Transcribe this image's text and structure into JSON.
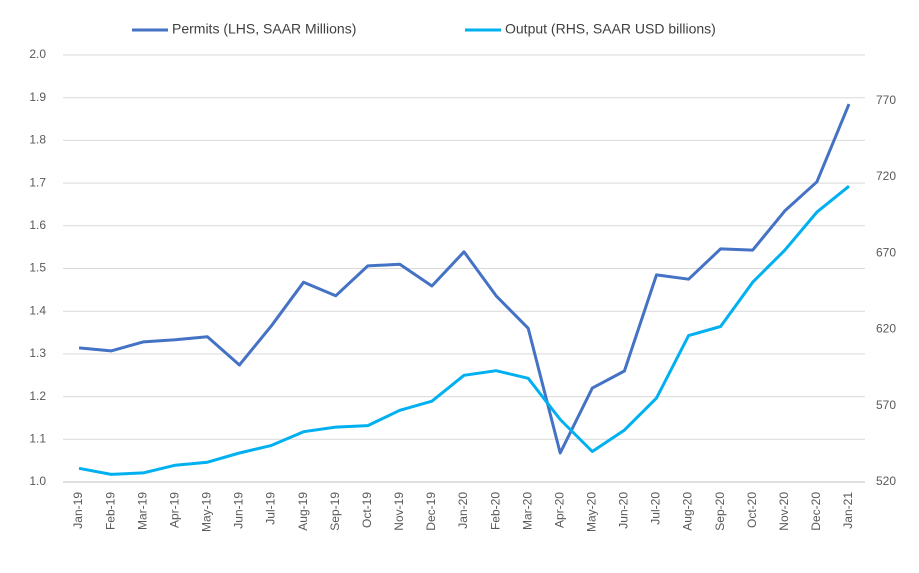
{
  "chart_data": {
    "type": "line",
    "categories": [
      "Jan-19",
      "Feb-19",
      "Mar-19",
      "Apr-19",
      "May-19",
      "Jun-19",
      "Jul-19",
      "Aug-19",
      "Sep-19",
      "Oct-19",
      "Nov-19",
      "Dec-19",
      "Jan-20",
      "Feb-20",
      "Mar-20",
      "Apr-20",
      "May-20",
      "Jun-20",
      "Jul-20",
      "Aug-20",
      "Sep-20",
      "Oct-20",
      "Nov-20",
      "Dec-20",
      "Jan-21"
    ],
    "series": [
      {
        "name": "Permits (LHS, SAAR Millions)",
        "color": "#4472c4",
        "axis": "y",
        "values": [
          1.314,
          1.307,
          1.328,
          1.333,
          1.34,
          1.274,
          1.366,
          1.468,
          1.436,
          1.506,
          1.51,
          1.459,
          1.539,
          1.436,
          1.36,
          1.068,
          1.22,
          1.26,
          1.485,
          1.475,
          1.546,
          1.543,
          1.635,
          1.703,
          1.885
        ]
      },
      {
        "name": "Output (RHS, SAAR USD billions)",
        "color": "#00b0f0",
        "axis": "y2",
        "values": [
          529,
          525,
          526,
          531,
          533,
          539,
          544,
          553,
          556,
          557,
          567,
          573,
          590,
          593,
          588,
          561,
          540,
          554,
          575,
          616,
          622,
          651,
          672,
          697,
          714
        ]
      }
    ],
    "ylim": [
      1.0,
      2.0
    ],
    "yticks": [
      {
        "value": 1.0,
        "label": "1.0"
      },
      1.1,
      1.2,
      1.3,
      1.4,
      1.5,
      1.6,
      1.7,
      1.8,
      1.9,
      {
        "value": 2.0,
        "label": "2.0"
      }
    ],
    "y2lim": [
      520,
      800
    ],
    "y2ticks": [
      520,
      570,
      620,
      670,
      720,
      770
    ],
    "grid": true,
    "legend": "top"
  }
}
